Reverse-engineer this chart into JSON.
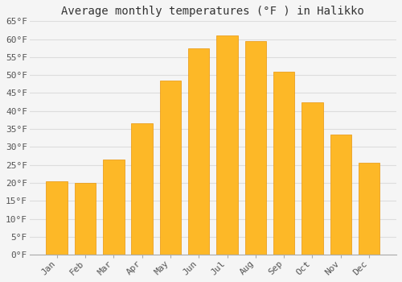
{
  "title": "Average monthly temperatures (°F ) in Halikko",
  "months": [
    "Jan",
    "Feb",
    "Mar",
    "Apr",
    "May",
    "Jun",
    "Jul",
    "Aug",
    "Sep",
    "Oct",
    "Nov",
    "Dec"
  ],
  "values": [
    20.5,
    20.0,
    26.5,
    36.5,
    48.5,
    57.5,
    61.0,
    59.5,
    51.0,
    42.5,
    33.5,
    25.5
  ],
  "bar_color": "#FDB827",
  "bar_edge_color": "#E8950A",
  "background_color": "#F5F5F5",
  "plot_bg_color": "#F5F5F5",
  "grid_color": "#DDDDDD",
  "ylim": [
    0,
    65
  ],
  "yticks": [
    0,
    5,
    10,
    15,
    20,
    25,
    30,
    35,
    40,
    45,
    50,
    55,
    60,
    65
  ],
  "title_fontsize": 10,
  "tick_fontsize": 8,
  "font_family": "monospace"
}
